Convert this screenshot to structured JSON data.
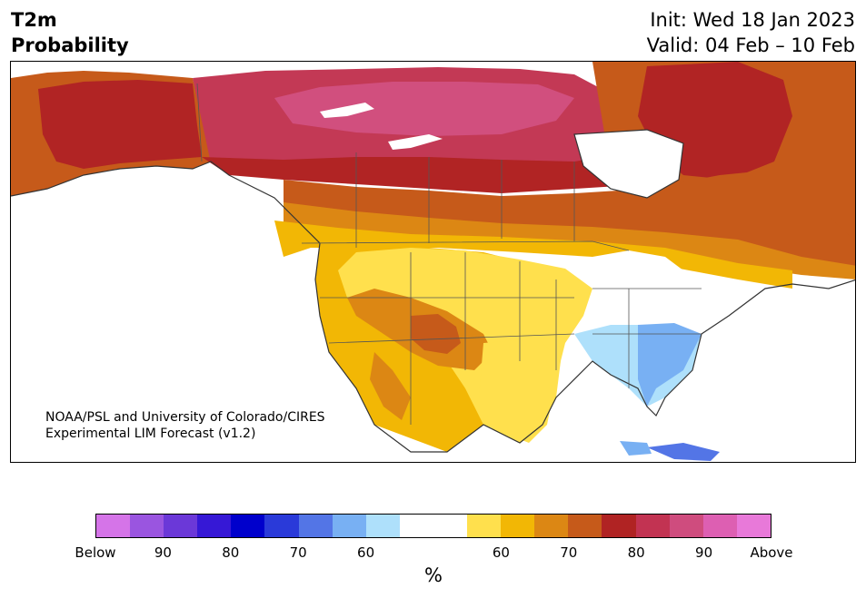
{
  "title": {
    "left_line1": "T2m",
    "left_line2": "Probability"
  },
  "header": {
    "init": "Init: Wed 18 Jan 2023",
    "valid": "Valid: 04 Feb – 10 Feb"
  },
  "credit": {
    "line1": "NOAA/PSL and University of Colorado/CIRES",
    "line2": "Experimental LIM Forecast (v1.2)"
  },
  "colorbar": {
    "colors": [
      "#d574e8",
      "#9a55e0",
      "#6b38d8",
      "#3618d6",
      "#0000cc",
      "#2a3ad9",
      "#5375e6",
      "#78b0f3",
      "#aee0fb",
      "#ffffff",
      "#ffffff",
      "#ffe04d",
      "#f2b705",
      "#dc8714",
      "#c65a1a",
      "#b02323",
      "#c23352",
      "#cf4c7e",
      "#dd5fb2",
      "#e879d9"
    ],
    "ticks": [
      "Below",
      "90",
      "80",
      "70",
      "60",
      "60",
      "70",
      "80",
      "90",
      "Above"
    ],
    "unit": "%"
  },
  "map_colors": {
    "above_95": "#d14f7e",
    "above_90": "#c33955",
    "above_80": "#b12424",
    "above_75": "#c65a1a",
    "above_70": "#dc8714",
    "above_65": "#f2b705",
    "above_60": "#ffe04d",
    "below_60": "#aee0fb",
    "below_70": "#78b0f3",
    "below_80": "#5375e6",
    "below_90": "#2a3ad9"
  }
}
